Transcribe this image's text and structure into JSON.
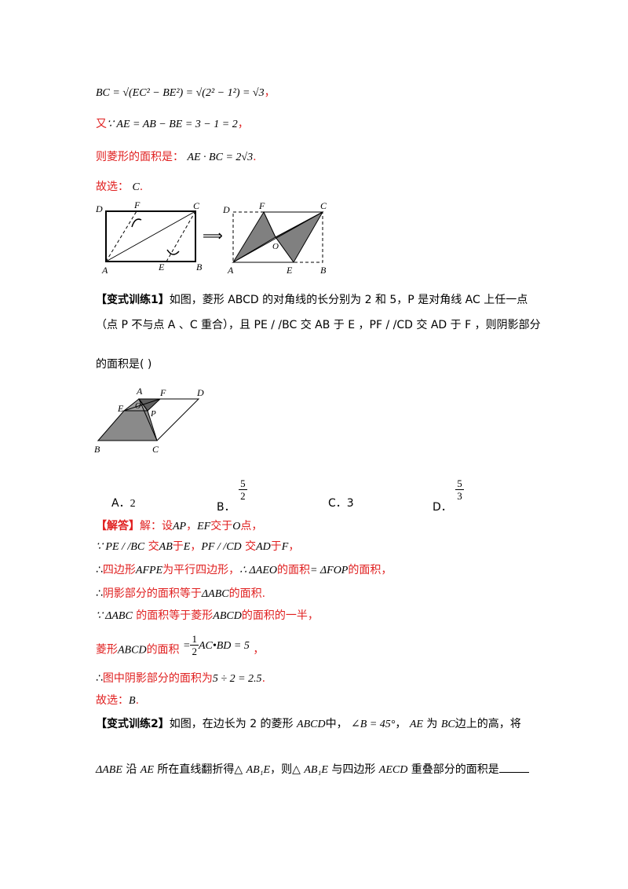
{
  "lines": {
    "l1_math": "BC = √(EC² − BE²) = √(2² − 1²) = √3",
    "l1_tail": "，",
    "l2_you": "又",
    "l2_math": "∵ AE = AB − BE = 3 − 1 = 2",
    "l2_tail": "，",
    "l3_text": "则菱形的面积是：",
    "l3_math": "AE · BC = 2√3",
    "l3_tail": ".",
    "l4_text": "故选：",
    "l4_math": "C",
    "l4_tail": "."
  },
  "fig1": {
    "left_labels": {
      "D": "D",
      "F": "F",
      "C": "C",
      "A": "A",
      "E": "E",
      "B": "B"
    },
    "right_labels": {
      "D": "D",
      "F": "F",
      "C": "C",
      "O": "O",
      "A": "A",
      "E": "E",
      "B": "B"
    },
    "arrow": "⟹"
  },
  "exercise1": {
    "tag": "【变式训练1】",
    "p1": "如图，菱形 ABCD 的对角线的长分别为 2 和 5，P 是对角线 AC 上任一点",
    "p2": "（点 P 不与点 A 、C 重合），且 PE / /BC 交 AB 于 E ，PF / /CD 交 AD 于 F ，则阴影部分",
    "p3": "的面积是",
    "p3_paren": "(      )"
  },
  "fig2": {
    "labels": {
      "A": "A",
      "F": "F",
      "D": "D",
      "E": "E",
      "O": "O",
      "P": "P",
      "B": "B",
      "C": "C"
    }
  },
  "options": {
    "A_label": "A．",
    "A_val": "2",
    "B_label": "B．",
    "B_num": "5",
    "B_den": "2",
    "C_label": "C．",
    "C_val": "3",
    "D_label": "D．",
    "D_num": "5",
    "D_den": "3"
  },
  "solution": {
    "tag": "【解答】",
    "s1a": "解：设",
    "s1b": "AP",
    "s1c": "，",
    "s1d": "EF",
    "s1e": "交于",
    "s1f": "O",
    "s1g": "点，",
    "s2a": "∵ PE / /BC",
    "s2b": "交",
    "s2c": "AB",
    "s2d": "于",
    "s2e": "E",
    "s2f": "，",
    "s2g": "PF / /CD",
    "s2h": "交",
    "s2i": "AD",
    "s2j": "于",
    "s2k": "F",
    "s2l": "，",
    "s3a": "∴",
    "s3b": "四边形",
    "s3c": "AFPE",
    "s3d": "为平行四边形，",
    "s3e": "∴ ΔAEO",
    "s3f": "的面积",
    "s3g": "= ΔFOP",
    "s3h": "的面积，",
    "s4a": "∴",
    "s4b": "阴影部分的面积等于",
    "s4c": "ΔABC",
    "s4d": "的面积.",
    "s5a": "∵ ΔABC",
    "s5b": "的面积等于菱形",
    "s5c": "ABCD",
    "s5d": "的面积的一半，",
    "s6a": "菱形",
    "s6b": "ABCD",
    "s6c": "的面积",
    "s6d_pre": "=",
    "s6d_num": "1",
    "s6d_den": "2",
    "s6d_post": "AC•BD = 5",
    "s6e": "，",
    "s7a": "∴",
    "s7b": "图中阴影部分的面积为",
    "s7c": "5 ÷ 2 = 2.5",
    "s7d": ".",
    "s8a": "故选：",
    "s8b": "B",
    "s8c": "."
  },
  "exercise2": {
    "tag": "【变式训练2】",
    "p1a": "如图，在边长为 2 的菱形",
    "p1b": "ABCD",
    "p1c": "中，",
    "p1d": "∠B = 45°",
    "p1e": "，",
    "p1f": "AE",
    "p1g": "为",
    "p1h": "BC",
    "p1i": "边上的高，将",
    "p2a": "ΔABE",
    "p2b": "沿",
    "p2c": "AE",
    "p2d": "所在直线翻折得△",
    "p2e": "AB₁E",
    "p2f": "，则△",
    "p2g": "AB₁E",
    "p2h": "与四边形",
    "p2i": "AECD",
    "p2j": "重叠部分的面积是"
  },
  "colors": {
    "red": "#e02020",
    "shade": "#808080"
  }
}
